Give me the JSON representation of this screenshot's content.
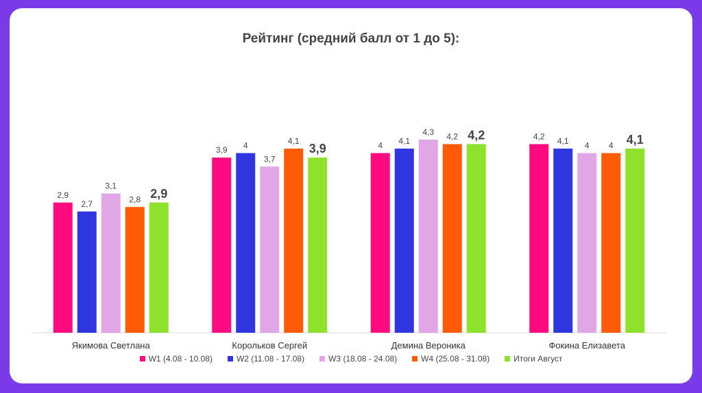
{
  "chart_data": {
    "type": "bar",
    "title": "Рейтинг (средний балл от 1 до 5):",
    "categories": [
      "Якимова Светлана",
      "Корольков Сергей",
      "Демина Вероника",
      "Фокина Елизавета"
    ],
    "series": [
      {
        "name": "W1 (4.08 - 10.08)",
        "color": "#ff0a7f",
        "values": [
          2.9,
          3.9,
          4,
          4.2
        ],
        "labels": [
          "2,9",
          "3,9",
          "4",
          "4,2"
        ],
        "bold": false
      },
      {
        "name": "W2 (11.08 - 17.08)",
        "color": "#2f36e0",
        "values": [
          2.7,
          4,
          4.1,
          4.1
        ],
        "labels": [
          "2,7",
          "4",
          "4,1",
          "4,1"
        ],
        "bold": false
      },
      {
        "name": "W3 (18.08 - 24.08)",
        "color": "#e0a6e6",
        "values": [
          3.1,
          3.7,
          4.3,
          4
        ],
        "labels": [
          "3,1",
          "3,7",
          "4,3",
          "4"
        ],
        "bold": false
      },
      {
        "name": "W4 (25.08 - 31.08)",
        "color": "#ff5a05",
        "values": [
          2.8,
          4.1,
          4.2,
          4
        ],
        "labels": [
          "2,8",
          "4,1",
          "4,2",
          "4"
        ],
        "bold": false
      },
      {
        "name": "Итоги Август",
        "color": "#8fe22b",
        "values": [
          2.9,
          3.9,
          4.2,
          4.1
        ],
        "labels": [
          "2,9",
          "3,9",
          "4,2",
          "4,1"
        ],
        "bold": true
      }
    ],
    "xlabel": "",
    "ylabel": "",
    "ylim": [
      0,
      5
    ],
    "grid": false,
    "legend": "bottom"
  }
}
